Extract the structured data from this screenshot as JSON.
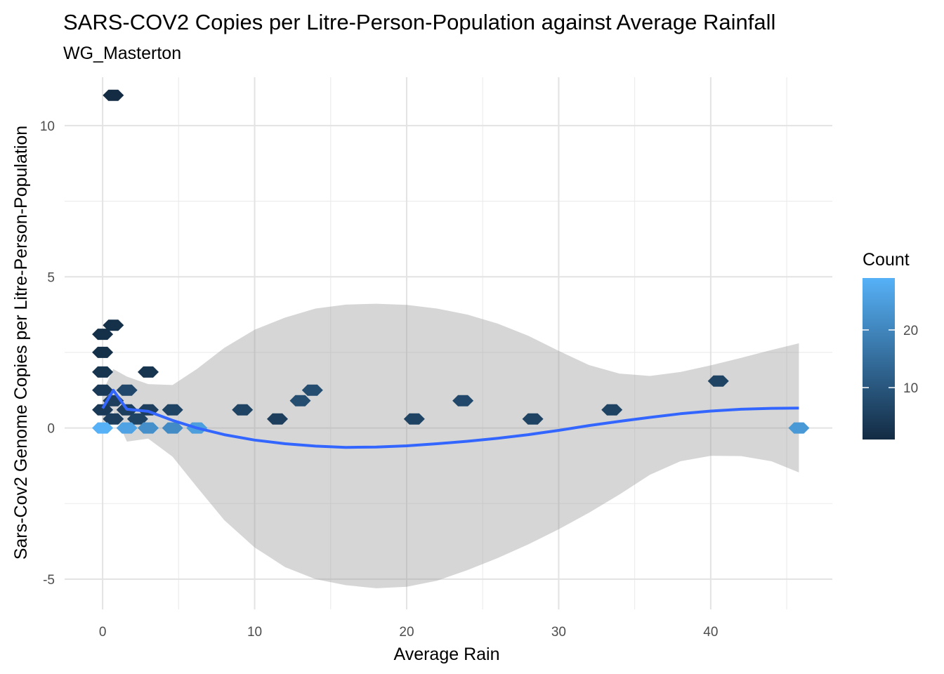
{
  "chart_data": {
    "type": "hexbin",
    "title": "SARS-COV2 Copies per Litre-Person-Population against Average Rainfall",
    "subtitle": "WG_Masterton",
    "xlabel": "Average Rain",
    "ylabel": "Sars-Cov2 Genome Copies per Litre-Person-Population",
    "xlim": [
      -2.5,
      48
    ],
    "ylim": [
      -6.0,
      11.6
    ],
    "x_ticks": [
      0,
      10,
      20,
      30,
      40
    ],
    "y_ticks": [
      -5,
      0,
      5,
      10
    ],
    "x_tick_labels": [
      "0",
      "10",
      "20",
      "30",
      "40"
    ],
    "y_tick_labels": [
      "-5",
      "0",
      "5",
      "10"
    ],
    "grid": true,
    "legend": {
      "title": "Count",
      "position": "right",
      "range": [
        1,
        29
      ],
      "ticks": [
        10,
        20
      ],
      "tick_labels": [
        "10",
        "20"
      ],
      "low_color": "#132b43",
      "high_color": "#56b1f7"
    },
    "hexbins": [
      {
        "x": 0.7,
        "y": 11.0,
        "count": 1
      },
      {
        "x": 0.7,
        "y": 3.4,
        "count": 2
      },
      {
        "x": 0.0,
        "y": 3.1,
        "count": 2
      },
      {
        "x": 0.0,
        "y": 2.5,
        "count": 2
      },
      {
        "x": 0.0,
        "y": 1.85,
        "count": 3
      },
      {
        "x": 3.0,
        "y": 1.85,
        "count": 3
      },
      {
        "x": 0.0,
        "y": 1.25,
        "count": 4
      },
      {
        "x": 1.6,
        "y": 1.25,
        "count": 7
      },
      {
        "x": 0.7,
        "y": 0.9,
        "count": 5
      },
      {
        "x": 0.0,
        "y": 0.6,
        "count": 4
      },
      {
        "x": 1.6,
        "y": 0.6,
        "count": 5
      },
      {
        "x": 3.0,
        "y": 0.6,
        "count": 5
      },
      {
        "x": 4.6,
        "y": 0.6,
        "count": 6
      },
      {
        "x": 0.7,
        "y": 0.3,
        "count": 5
      },
      {
        "x": 2.3,
        "y": 0.3,
        "count": 6
      },
      {
        "x": 0.0,
        "y": 0.0,
        "count": 29
      },
      {
        "x": 1.6,
        "y": 0.0,
        "count": 26
      },
      {
        "x": 3.0,
        "y": 0.0,
        "count": 22
      },
      {
        "x": 4.6,
        "y": 0.0,
        "count": 21
      },
      {
        "x": 6.2,
        "y": 0.0,
        "count": 25
      },
      {
        "x": 9.2,
        "y": 0.6,
        "count": 6
      },
      {
        "x": 11.5,
        "y": 0.3,
        "count": 5
      },
      {
        "x": 13.0,
        "y": 0.9,
        "count": 8
      },
      {
        "x": 13.8,
        "y": 1.25,
        "count": 8
      },
      {
        "x": 20.5,
        "y": 0.3,
        "count": 6
      },
      {
        "x": 23.7,
        "y": 0.9,
        "count": 7
      },
      {
        "x": 28.3,
        "y": 0.3,
        "count": 6
      },
      {
        "x": 33.5,
        "y": 0.6,
        "count": 6
      },
      {
        "x": 40.5,
        "y": 1.55,
        "count": 6
      },
      {
        "x": 45.8,
        "y": 0.0,
        "count": 24
      }
    ],
    "smooth": {
      "x": [
        0.0,
        0.7,
        1.6,
        3.0,
        4.6,
        6.2,
        8,
        10,
        12,
        14,
        16,
        18,
        20,
        22,
        24,
        26,
        28,
        30,
        32,
        34,
        36,
        38,
        40,
        42,
        44,
        45.8
      ],
      "y": [
        0.65,
        1.25,
        0.62,
        0.55,
        0.25,
        0.0,
        -0.22,
        -0.4,
        -0.52,
        -0.6,
        -0.64,
        -0.63,
        -0.59,
        -0.52,
        -0.44,
        -0.34,
        -0.22,
        -0.08,
        0.08,
        0.22,
        0.35,
        0.47,
        0.56,
        0.62,
        0.65,
        0.66
      ],
      "ymin": [
        0.1,
        0.55,
        -0.45,
        -0.35,
        -0.95,
        -1.95,
        -3.05,
        -3.95,
        -4.6,
        -5.0,
        -5.2,
        -5.3,
        -5.25,
        -5.05,
        -4.7,
        -4.3,
        -3.85,
        -3.35,
        -2.8,
        -2.2,
        -1.55,
        -1.1,
        -0.92,
        -0.93,
        -1.1,
        -1.47
      ],
      "ymax": [
        1.2,
        1.95,
        1.7,
        1.45,
        1.42,
        1.95,
        2.65,
        3.25,
        3.65,
        3.95,
        4.08,
        4.11,
        4.07,
        3.95,
        3.75,
        3.45,
        3.05,
        2.55,
        2.08,
        1.8,
        1.72,
        1.85,
        2.07,
        2.32,
        2.58,
        2.8
      ]
    }
  }
}
